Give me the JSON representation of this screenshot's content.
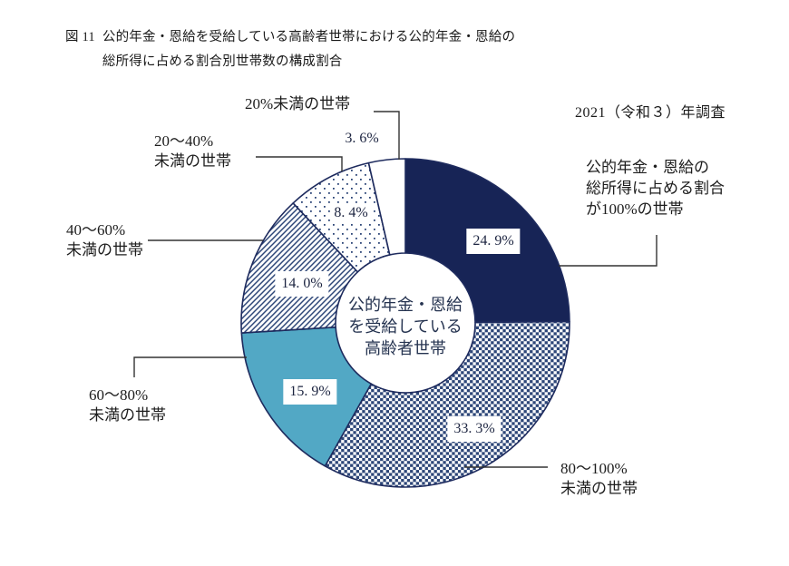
{
  "figure": {
    "number": "図 11",
    "title": "公的年金・恩給を受給している高齢者世帯における公的年金・恩給の\n総所得に占める割合別世帯数の構成割合",
    "survey_note": "2021（令和３）年調査"
  },
  "chart_data": {
    "type": "pie",
    "subtype": "donut",
    "title": "公的年金・恩給を受給している高齢者世帯における公的年金・恩給の総所得に占める割合別世帯数の構成割合",
    "center_label": "公的年金・恩給\nを受給している\n高齢者世帯",
    "start_angle_deg": 0,
    "direction": "clockwise",
    "segments": [
      {
        "label": "公的年金・恩給の総所得に占める割合が100%の世帯",
        "value": 24.9,
        "value_label": "24. 9%",
        "fill": "navy"
      },
      {
        "label": "80〜100%未満の世帯",
        "value": 33.3,
        "value_label": "33. 3%",
        "fill": "checker"
      },
      {
        "label": "60〜80%未満の世帯",
        "value": 15.9,
        "value_label": "15. 9%",
        "fill": "teal"
      },
      {
        "label": "40〜60%未満の世帯",
        "value": 14.0,
        "value_label": "14. 0%",
        "fill": "stripes"
      },
      {
        "label": "20〜40%未満の世帯",
        "value": 8.4,
        "value_label": "8. 4%",
        "fill": "dots"
      },
      {
        "label": "20%未満の世帯",
        "value": 3.6,
        "value_label": "3. 6%",
        "fill": "white"
      }
    ],
    "colors": {
      "navy": "#172456",
      "teal": "#52a8c5",
      "pattern_ink": "#2d4678",
      "outline": "#1e2b5e",
      "leader_line": "#333333"
    }
  },
  "callouts": {
    "under20": "20%未満の世帯",
    "r20_40": "20〜40%\n未満の世帯",
    "r40_60": "40〜60%\n未満の世帯",
    "r60_80": "60〜80%\n未満の世帯",
    "r80_100": "80〜100%\n未満の世帯",
    "full100": "公的年金・恩給の\n総所得に占める割合\nが100%の世帯"
  }
}
